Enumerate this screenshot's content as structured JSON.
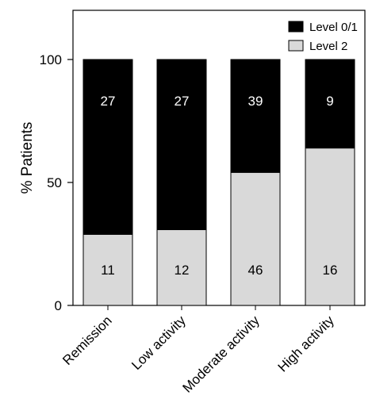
{
  "chart_data": {
    "type": "bar",
    "stacked": true,
    "percent_stacked": true,
    "ylabel": "% Patients",
    "xlabel": "",
    "title": "",
    "ylim": [
      0,
      120
    ],
    "yticks": [
      0,
      50,
      100
    ],
    "categories": [
      "Remission",
      "Low activity",
      "Moderate activity",
      "High activity"
    ],
    "series": [
      {
        "name": "Level 2",
        "color": "#d9d9d9",
        "counts": [
          11,
          12,
          46,
          16
        ],
        "percent": [
          28.9,
          30.8,
          54.1,
          64.0
        ]
      },
      {
        "name": "Level 0/1",
        "color": "#000000",
        "counts": [
          27,
          27,
          39,
          9
        ],
        "percent": [
          71.1,
          69.2,
          45.9,
          36.0
        ]
      }
    ],
    "legend_position": "top-right",
    "grid": false
  }
}
